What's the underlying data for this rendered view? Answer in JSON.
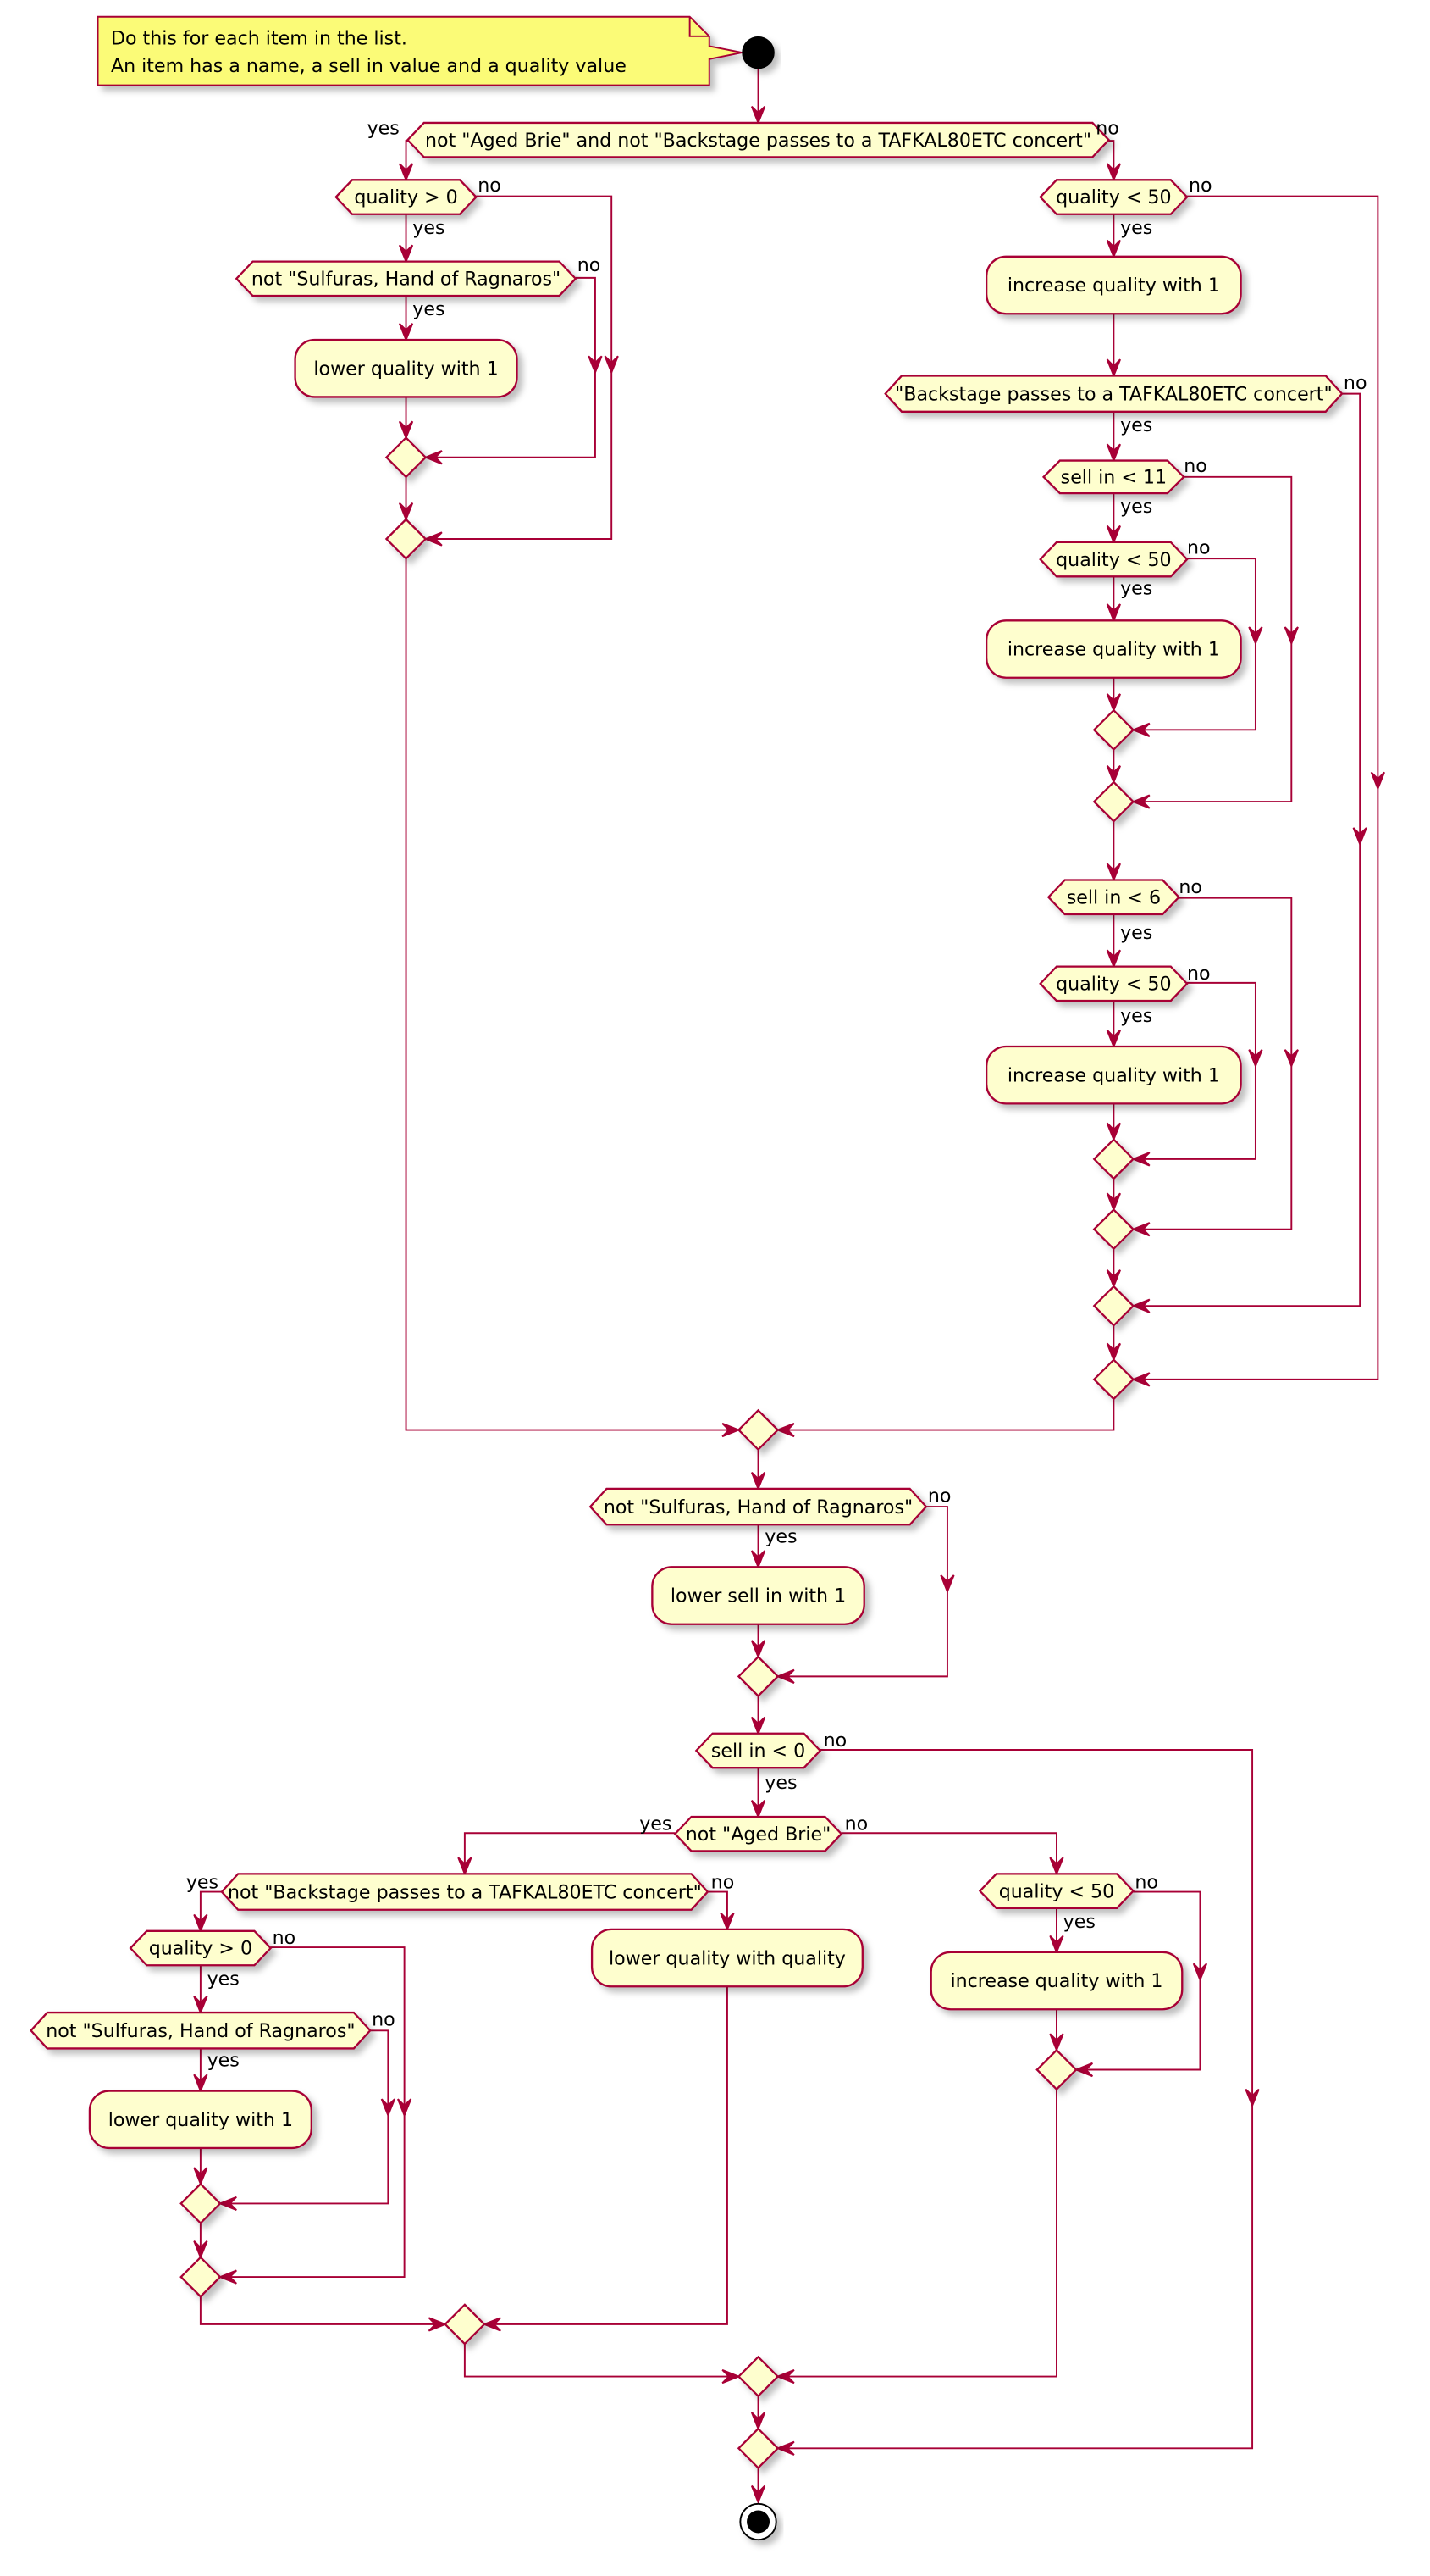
{
  "note": {
    "lines": [
      "Do this for each item in the list.",
      "An item has a name, a sell in value and a quality value"
    ]
  },
  "labels": {
    "yes": "yes",
    "no": "no"
  },
  "decisions": {
    "d1": "not \"Aged Brie\" and not \"Backstage passes to a TAFKAL80ETC concert\"",
    "d2": "quality > 0",
    "d3": "not \"Sulfuras, Hand of Ragnaros\"",
    "d4": "quality < 50",
    "d5": "\"Backstage passes to a TAFKAL80ETC concert\"",
    "d6": "sell in < 11",
    "d7": "quality < 50",
    "d8": "sell in < 6",
    "d9": "quality < 50",
    "d10": "not \"Sulfuras, Hand of Ragnaros\"",
    "d11": "sell in < 0",
    "d12": "not \"Aged Brie\"",
    "d13": "not \"Backstage passes to a TAFKAL80ETC concert\"",
    "d14": "quality > 0",
    "d15": "not \"Sulfuras, Hand of Ragnaros\"",
    "d16": "quality < 50"
  },
  "actions": {
    "a1": "lower quality with 1",
    "a2": "increase quality with 1",
    "a3": "increase quality with 1",
    "a4": "increase quality with 1",
    "a5": "lower sell in with 1",
    "a6": "lower quality with 1",
    "a7": "lower quality with quality",
    "a8": "increase quality with 1"
  },
  "colors": {
    "border": "#A80036",
    "fill": "#FEFECE",
    "note": "#FBFB77"
  }
}
